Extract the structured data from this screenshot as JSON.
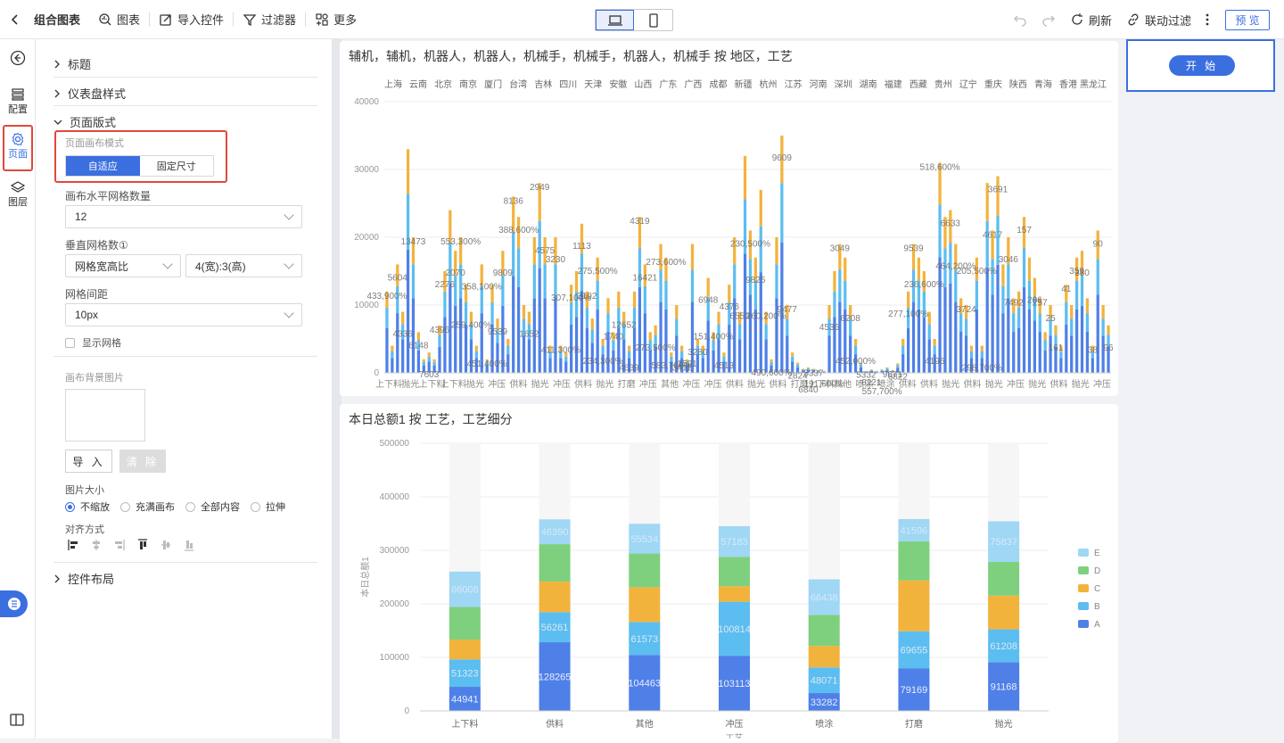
{
  "topbar": {
    "title": "组合图表",
    "menu": [
      {
        "label": "图表",
        "icon": "chart-search-icon"
      },
      {
        "label": "导入控件",
        "icon": "import-icon"
      },
      {
        "label": "过滤器",
        "icon": "filter-icon"
      },
      {
        "label": "更多",
        "icon": "more-grid-icon"
      }
    ],
    "refresh": "刷新",
    "linkage": "联动过滤",
    "preview": "预 览"
  },
  "rail": [
    {
      "label": "配置",
      "icon": "config-icon"
    },
    {
      "label": "页面",
      "icon": "gear-icon"
    },
    {
      "label": "图层",
      "icon": "layers-icon"
    }
  ],
  "panel": {
    "sections": {
      "title": "标题",
      "style": "仪表盘样式",
      "layout": "页面版式",
      "widget_layout": "控件布局"
    },
    "canvas_mode": {
      "label": "页面画布模式",
      "options": [
        "自适应",
        "固定尺寸"
      ],
      "selected": "自适应"
    },
    "h_grid": {
      "label": "画布水平网格数量",
      "value": "12"
    },
    "v_grid": {
      "label": "垂直网格数①",
      "mode": "网格宽高比",
      "ratio": "4(宽):3(高)"
    },
    "gap": {
      "label": "网格间距",
      "value": "10px"
    },
    "show_grid": "显示网格",
    "bg_image": {
      "label": "画布背景图片",
      "import": "导 入",
      "clear": "清 除"
    },
    "img_size": {
      "label": "图片大小",
      "options": [
        "不缩放",
        "充满画布",
        "全部内容",
        "拉伸"
      ],
      "selected": "不缩放"
    },
    "align": {
      "label": "对齐方式"
    }
  },
  "start_button": "开 始",
  "chart1": {
    "title": "辅机，辅机，机器人，机器人，机械手，机械手，机器人，机械手 按 地区，工艺",
    "top_labels": [
      "上海",
      "云南",
      "北京",
      "南京",
      "厦门",
      "台湾",
      "吉林",
      "四川",
      "天津",
      "安徽",
      "山西",
      "广东",
      "广西",
      "成都",
      "新疆",
      "杭州",
      "江苏",
      "河南",
      "深圳",
      "湖南",
      "福建",
      "西藏",
      "贵州",
      "辽宁",
      "重庆",
      "陕西",
      "青海",
      "香港",
      "黑龙江"
    ],
    "bottom_labels": [
      "上下料",
      "抛光",
      "上下料",
      "上下料",
      "抛光",
      "冲压",
      "供料",
      "抛光",
      "冲压",
      "供料",
      "抛光",
      "打磨",
      "冲压",
      "其他",
      "冲压",
      "冲压",
      "供料",
      "抛光",
      "供料",
      "打磨",
      "上下料",
      "其他",
      "喷涂",
      "喷涂",
      "供料",
      "供料",
      "抛光",
      "供料",
      "抛光",
      "冲压",
      "抛光",
      "供料",
      "抛光",
      "冲压"
    ],
    "annotations": [
      "433,900%",
      "5604",
      "4336",
      "13473",
      "6148",
      "7603",
      "4396",
      "2276",
      "2070",
      "553,300%",
      "259,400%",
      "358,100%",
      "451,400%",
      "9539",
      "9809",
      "8136",
      "388,600%",
      "1652",
      "2949",
      "4575",
      "3230",
      "411,300%",
      "307,100%",
      "1113",
      "3192",
      "275,500%",
      "234,300%",
      "1740",
      "12652",
      "4639",
      "4319",
      "16421",
      "273,500%",
      "273,600%",
      "583,700%",
      "3411",
      "1591",
      "3280",
      "6948",
      "151,400%",
      "4513",
      "4376",
      "6553",
      "230,500%",
      "9825",
      "260,200%",
      "490,600%",
      "9609",
      "9477",
      "2824",
      "6840",
      "5337",
      "191,600%",
      "4536",
      "3049",
      "6208",
      "452,000%",
      "5332",
      "8221",
      "557,700%",
      "9671",
      "6822",
      "277,100%",
      "9539",
      "236,600%",
      "4196",
      "518,600%",
      "6633",
      "464,200%",
      "3724",
      "205,500%",
      "298,700%",
      "4617",
      "3691",
      "3046",
      "7492",
      "157",
      "206",
      "257",
      "25",
      "161",
      "41",
      "359",
      "380",
      "38",
      "90",
      "96"
    ],
    "chart_data": {
      "type": "bar",
      "stacked": true,
      "series": [
        {
          "name": "A"
        },
        {
          "name": "B"
        },
        {
          "name": "C"
        }
      ],
      "ylim": [
        0,
        40000
      ],
      "yticks": [
        0,
        10000,
        20000,
        30000,
        40000
      ],
      "totals": [
        12000,
        4000,
        16000,
        9000,
        33000,
        20000,
        6000,
        2000,
        3000,
        2000,
        7000,
        15000,
        24000,
        18000,
        20000,
        13000,
        9000,
        4000,
        16000,
        2000,
        13000,
        8000,
        18000,
        5000,
        26000,
        23000,
        10000,
        9000,
        20000,
        28000,
        20000,
        4000,
        20000,
        4000,
        3000,
        13000,
        15000,
        22000,
        12000,
        8000,
        17000,
        5000,
        11000,
        6000,
        12000,
        9000,
        4000,
        12000,
        23000,
        16000,
        6000,
        7000,
        19000,
        17000,
        3000,
        10000,
        4000,
        2000,
        19000,
        5000,
        4000,
        14000,
        6000,
        9000,
        3000,
        13000,
        20000,
        9000,
        32000,
        21000,
        17000,
        27000,
        9000,
        2000,
        20000,
        35000,
        10000,
        3000,
        1500,
        600,
        800,
        600,
        400,
        300,
        10000,
        15000,
        19000,
        17000,
        10000,
        5000,
        1500,
        300,
        500,
        300,
        500,
        800,
        400,
        1400,
        5000,
        12000,
        19000,
        17000,
        15000,
        9000,
        5000,
        31000,
        23000,
        24000,
        19000,
        11000,
        10000,
        4000,
        17000,
        4000,
        28000,
        21000,
        29000,
        16000,
        20000,
        11000,
        12000,
        23000,
        17000,
        14000,
        11000,
        6000,
        10000,
        7000,
        4000,
        13000,
        10000,
        17000,
        18000,
        11000,
        4000,
        21000,
        10000,
        7000
      ]
    }
  },
  "chart2": {
    "title": "本日总额1 按 工艺，工艺细分",
    "chart_data": {
      "type": "bar",
      "stacked": true,
      "categories": [
        "上下料",
        "供料",
        "其他",
        "冲压",
        "喷涂",
        "打磨",
        "抛光"
      ],
      "series": [
        {
          "name": "A",
          "color": "#4f80e8",
          "values": [
            44941,
            128265,
            104463,
            103113,
            33282,
            79169,
            91168
          ]
        },
        {
          "name": "B",
          "color": "#5cbdf0",
          "values": [
            51323,
            56261,
            61573,
            100814,
            48071,
            69655,
            61208
          ]
        },
        {
          "name": "C",
          "color": "#f2b33d",
          "values": [
            37000,
            57000,
            65000,
            29000,
            40000,
            95000,
            63000
          ]
        },
        {
          "name": "D",
          "color": "#7ed07e",
          "values": [
            61000,
            70000,
            63000,
            55000,
            58000,
            73000,
            63000
          ]
        },
        {
          "name": "E",
          "color": "#9fd7f5",
          "values": [
            66008,
            46390,
            55534,
            57183,
            66438,
            41596,
            75837
          ]
        }
      ],
      "ylabel": "本日总额1",
      "xlabel": "工艺",
      "ylim": [
        0,
        500000
      ],
      "yticks": [
        0,
        100000,
        200000,
        300000,
        400000,
        500000
      ],
      "legend": "right"
    }
  }
}
